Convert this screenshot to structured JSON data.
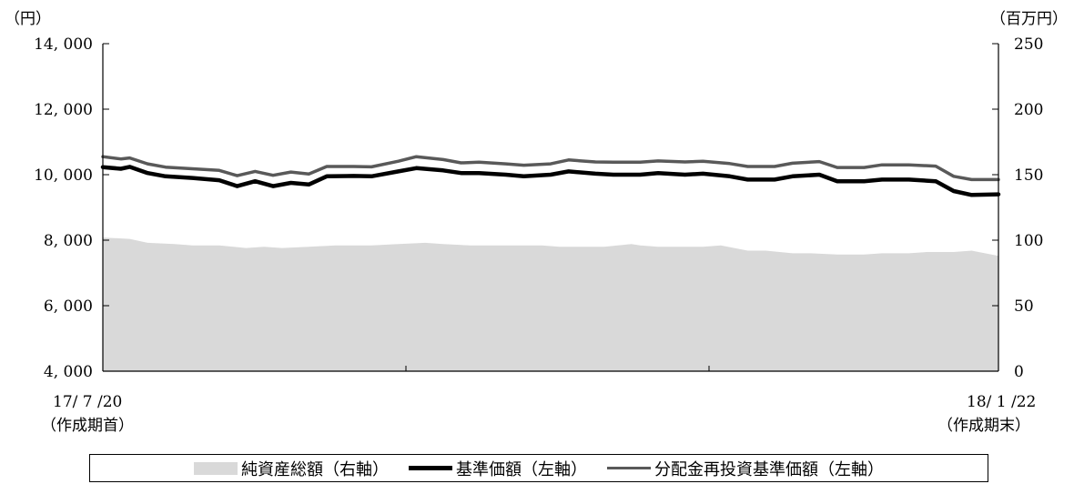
{
  "chart_data": {
    "type": "line",
    "left_unit": "（円）",
    "right_unit": "（百万円）",
    "left_axis": {
      "min": 4000,
      "max": 14000,
      "ticks": [
        4000,
        6000,
        8000,
        10000,
        12000,
        14000
      ],
      "tick_labels": [
        "4, 000",
        "6, 000",
        "8, 000",
        "10, 000",
        "12, 000",
        "14, 000"
      ]
    },
    "right_axis": {
      "min": 0,
      "max": 250,
      "ticks": [
        0,
        50,
        100,
        150,
        200,
        250
      ],
      "tick_labels": [
        "0",
        "50",
        "100",
        "150",
        "200",
        "250"
      ]
    },
    "x_start": {
      "date": "17/ 7 /20",
      "label": "（作成期首）"
    },
    "x_end": {
      "date": "18/ 1 /22",
      "label": "（作成期末）"
    },
    "legend": [
      {
        "name": "純資産総額（右軸）",
        "style": "area"
      },
      {
        "name": "基準価額（左軸）",
        "style": "thick"
      },
      {
        "name": "分配金再投資基準価額（左軸）",
        "style": "thin"
      }
    ],
    "colors": {
      "net_assets": "#d9d9d9",
      "nav": "#000000",
      "reinvested": "#595959"
    },
    "series": [
      {
        "name": "純資産総額（右軸）",
        "axis": "right",
        "x": [
          0,
          0.03,
          0.05,
          0.08,
          0.1,
          0.13,
          0.16,
          0.18,
          0.2,
          0.23,
          0.26,
          0.28,
          0.3,
          0.33,
          0.36,
          0.38,
          0.41,
          0.44,
          0.46,
          0.49,
          0.51,
          0.54,
          0.56,
          0.59,
          0.6,
          0.62,
          0.64,
          0.67,
          0.69,
          0.72,
          0.74,
          0.77,
          0.79,
          0.82,
          0.85,
          0.87,
          0.9,
          0.92,
          0.95,
          0.97,
          1
        ],
        "values": [
          102,
          101,
          98,
          97,
          96,
          96,
          94,
          95,
          94,
          95,
          96,
          96,
          96,
          97,
          98,
          97,
          96,
          96,
          96,
          96,
          95,
          95,
          95,
          97,
          96,
          95,
          95,
          95,
          96,
          92,
          92,
          90,
          90,
          89,
          89,
          90,
          90,
          91,
          91,
          92,
          88
        ]
      },
      {
        "name": "基準価額（左軸）",
        "axis": "left",
        "x": [
          0,
          0.02,
          0.03,
          0.05,
          0.07,
          0.1,
          0.13,
          0.15,
          0.17,
          0.19,
          0.21,
          0.23,
          0.25,
          0.28,
          0.3,
          0.33,
          0.35,
          0.38,
          0.4,
          0.42,
          0.45,
          0.47,
          0.5,
          0.52,
          0.55,
          0.57,
          0.6,
          0.62,
          0.65,
          0.67,
          0.7,
          0.72,
          0.75,
          0.77,
          0.8,
          0.82,
          0.85,
          0.87,
          0.9,
          0.93,
          0.95,
          0.97,
          1
        ],
        "values": [
          10230,
          10180,
          10240,
          10050,
          9950,
          9900,
          9830,
          9650,
          9800,
          9650,
          9750,
          9700,
          9950,
          9960,
          9950,
          10100,
          10200,
          10130,
          10050,
          10050,
          10000,
          9950,
          10000,
          10100,
          10030,
          10000,
          10000,
          10050,
          10000,
          10030,
          9950,
          9850,
          9850,
          9950,
          10000,
          9800,
          9800,
          9850,
          9850,
          9800,
          9500,
          9380,
          9400
        ]
      },
      {
        "name": "分配金再投資基準価額（左軸）",
        "axis": "left",
        "x": [
          0,
          0.02,
          0.03,
          0.05,
          0.07,
          0.1,
          0.13,
          0.15,
          0.17,
          0.19,
          0.21,
          0.23,
          0.25,
          0.28,
          0.3,
          0.33,
          0.35,
          0.38,
          0.4,
          0.42,
          0.45,
          0.47,
          0.5,
          0.52,
          0.55,
          0.57,
          0.6,
          0.62,
          0.65,
          0.67,
          0.7,
          0.72,
          0.75,
          0.77,
          0.8,
          0.82,
          0.85,
          0.87,
          0.9,
          0.93,
          0.95,
          0.97,
          1
        ],
        "values": [
          10550,
          10480,
          10510,
          10330,
          10230,
          10180,
          10130,
          9970,
          10100,
          9980,
          10080,
          10020,
          10250,
          10250,
          10240,
          10410,
          10550,
          10460,
          10360,
          10380,
          10330,
          10290,
          10330,
          10450,
          10390,
          10380,
          10380,
          10420,
          10390,
          10410,
          10340,
          10250,
          10250,
          10350,
          10400,
          10220,
          10220,
          10300,
          10300,
          10260,
          9950,
          9850,
          9850
        ]
      }
    ]
  }
}
